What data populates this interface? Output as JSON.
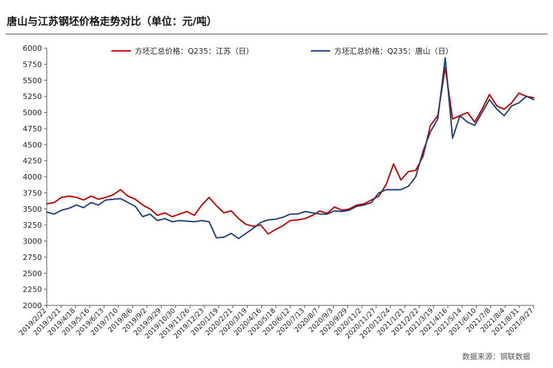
{
  "chart_data": {
    "type": "line",
    "title": "唐山与江苏钢坯价格走势对比（单位：元/吨）",
    "source": "数据来源：钢联数据",
    "xlabel": "",
    "ylabel": "",
    "ylim": [
      2000,
      6000
    ],
    "yticks": [
      "6000",
      "5750",
      "5500",
      "5250",
      "5000",
      "4750",
      "4500",
      "4250",
      "4000",
      "3750",
      "3500",
      "3250",
      "3000",
      "2750",
      "2500",
      "2250",
      "2000"
    ],
    "xticks": [
      "2019/2/22",
      "2019/3/21",
      "2019/4/18",
      "2019/5/16",
      "2019/6/13",
      "2019/7/10",
      "2019/8/6",
      "2019/9/2",
      "2019/9/29",
      "2019/10/30",
      "2019/11/26",
      "2019/12/23",
      "2020/1/19",
      "2020/2/21",
      "2020/3/19",
      "2020/4/16",
      "2020/5/18",
      "2020/6/12",
      "2020/7/13",
      "2020/8/7",
      "2020/9/3",
      "2020/9/29",
      "2020/11/2",
      "2020/11/27",
      "2020/12/24",
      "2021/1/21",
      "2021/2/22",
      "2021/3/19",
      "2021/4/16",
      "2021/5/14",
      "2021/6/10",
      "2021/7/8",
      "2021/8/4",
      "2021/8/31",
      "2021/9/27"
    ],
    "grid": false,
    "legend_position": "top",
    "series": [
      {
        "name": "方坯汇总价格：Q235：江苏（日）",
        "color": "#c00000",
        "values": [
          3580,
          3600,
          3680,
          3700,
          3680,
          3640,
          3700,
          3650,
          3680,
          3720,
          3800,
          3700,
          3650,
          3560,
          3500,
          3400,
          3440,
          3380,
          3420,
          3460,
          3400,
          3560,
          3680,
          3550,
          3440,
          3470,
          3350,
          3260,
          3230,
          3250,
          3110,
          3180,
          3240,
          3320,
          3330,
          3350,
          3400,
          3470,
          3430,
          3530,
          3480,
          3500,
          3560,
          3580,
          3640,
          3700,
          3880,
          4200,
          3950,
          4080,
          4100,
          4320,
          4800,
          4950,
          5700,
          4900,
          4950,
          5000,
          4850,
          5050,
          5280,
          5100,
          5050,
          5150,
          5300,
          5250,
          5230
        ]
      },
      {
        "name": "方坯汇总价格：Q235：唐山（日）",
        "color": "#1f3f77",
        "values": [
          3450,
          3420,
          3480,
          3510,
          3560,
          3520,
          3600,
          3560,
          3640,
          3650,
          3660,
          3600,
          3540,
          3380,
          3420,
          3320,
          3350,
          3300,
          3320,
          3310,
          3300,
          3320,
          3300,
          3050,
          3060,
          3120,
          3040,
          3120,
          3200,
          3290,
          3330,
          3340,
          3370,
          3420,
          3420,
          3460,
          3440,
          3420,
          3420,
          3470,
          3460,
          3480,
          3540,
          3560,
          3600,
          3750,
          3800,
          3800,
          3800,
          3850,
          4000,
          4400,
          4700,
          4900,
          5850,
          4600,
          4950,
          4850,
          4800,
          5000,
          5200,
          5050,
          4950,
          5100,
          5150,
          5250,
          5200
        ]
      }
    ]
  }
}
